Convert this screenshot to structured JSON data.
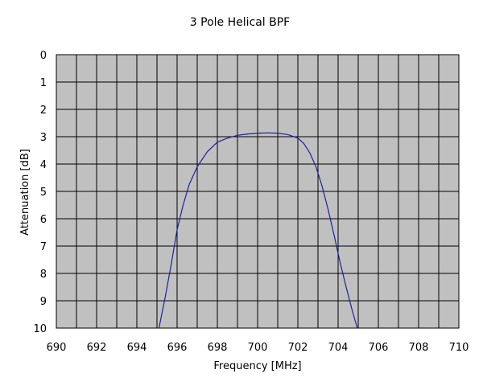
{
  "chart_data": {
    "type": "line",
    "title": "3 Pole Helical BPF",
    "xlabel": "Frequency [MHz]",
    "ylabel": "Attenuation [dB]",
    "xlim": [
      690,
      710
    ],
    "ylim": [
      0,
      10
    ],
    "y_inverted": true,
    "grid": true,
    "plot_background": "#c0c0c0",
    "line_color": "#1f1f9f",
    "x_ticks": [
      "690",
      "692",
      "694",
      "696",
      "698",
      "700",
      "702",
      "704",
      "706",
      "708",
      "710"
    ],
    "y_ticks": [
      "0",
      "1",
      "2",
      "3",
      "4",
      "5",
      "6",
      "7",
      "8",
      "9",
      "10"
    ],
    "series": [
      {
        "x": [
          695.1,
          695.4,
          695.7,
          696.0,
          696.3,
          696.6,
          697.0,
          697.5,
          698.0,
          698.5,
          699.0,
          699.5,
          700.0,
          700.5,
          701.0,
          701.5,
          702.0,
          702.3,
          702.6,
          702.9,
          703.2,
          703.5,
          703.8,
          704.1,
          704.4,
          704.7,
          704.95
        ],
        "y": [
          10.0,
          8.9,
          7.7,
          6.4,
          5.5,
          4.75,
          4.1,
          3.55,
          3.2,
          3.05,
          2.95,
          2.9,
          2.87,
          2.86,
          2.87,
          2.92,
          3.05,
          3.25,
          3.6,
          4.1,
          4.8,
          5.65,
          6.6,
          7.6,
          8.5,
          9.35,
          10.0
        ]
      }
    ]
  }
}
